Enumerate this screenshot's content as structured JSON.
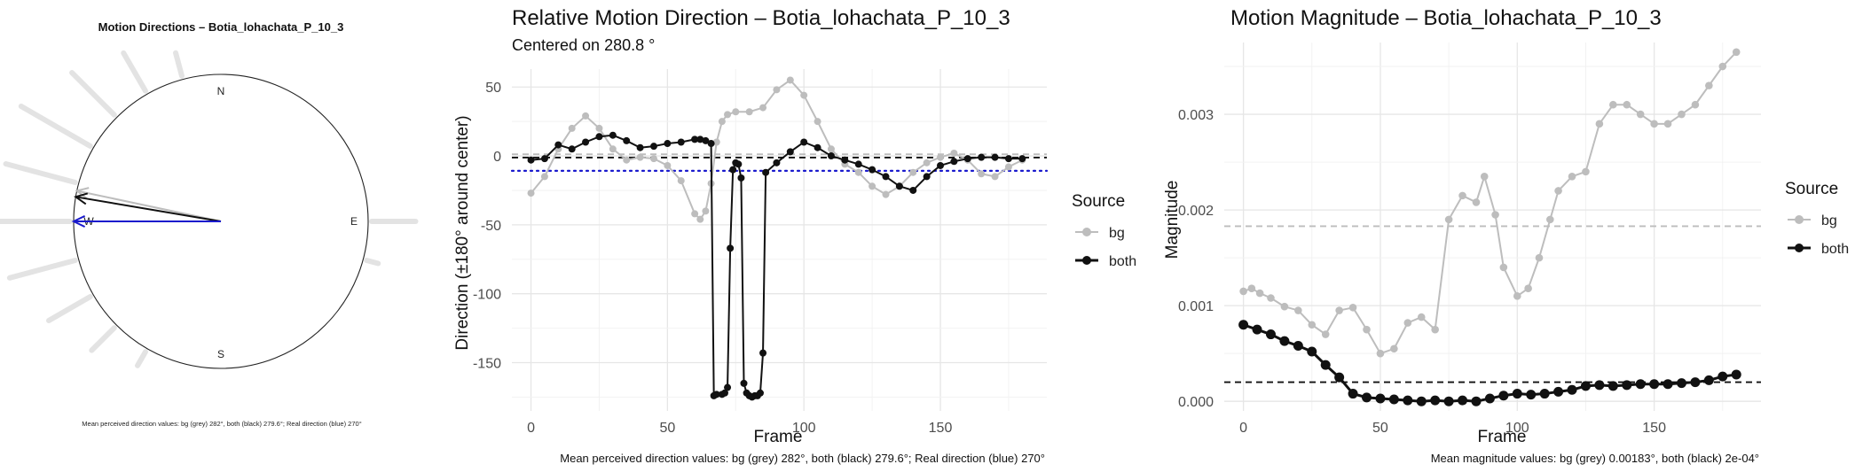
{
  "chart_data": [
    {
      "type": "polar",
      "title": "Motion Directions – Botia_lohachata_P_10_3",
      "compass": {
        "n": "N",
        "e": "E",
        "s": "S",
        "w": "W"
      },
      "caption": "Mean perceived direction values: bg (grey) 282°, both (black) 279.6°; Real direction (blue) 270°",
      "rose_angles_deg": [
        0,
        15,
        30,
        45,
        60,
        75,
        90,
        105,
        120,
        135,
        150,
        165,
        180,
        195,
        210,
        225,
        240,
        255,
        270,
        285,
        300,
        315,
        330,
        345
      ],
      "rose_lengths": [
        0,
        0,
        0,
        0,
        0,
        0,
        0.55,
        0.15,
        0,
        0,
        0,
        0,
        0,
        0,
        0.2,
        0.4,
        0.6,
        0.85,
        1.0,
        0.9,
        1.0,
        0.75,
        0.55,
        0.3
      ],
      "arrows": [
        {
          "color": "#bdbdbd",
          "angle_deg": 282,
          "length": 1.0
        },
        {
          "color": "#111111",
          "angle_deg": 279.6,
          "length": 1.0
        },
        {
          "color": "#1a1acd",
          "angle_deg": 270,
          "length": 1.0
        }
      ],
      "colors": {
        "bg": "#bdbdbd",
        "both": "#111111",
        "real": "#1a1acd"
      }
    },
    {
      "type": "line",
      "title": "Relative Motion Direction – Botia_lohachata_P_10_3",
      "subtitle": "Centered on  280.8 °",
      "xlabel": "Frame",
      "ylabel": "Direction (±180° around center)",
      "xlim": [
        -7,
        189
      ],
      "ylim": [
        -185,
        63
      ],
      "xticks": [
        0,
        50,
        100,
        150
      ],
      "yticks": [
        50,
        0,
        -50,
        -100,
        -150
      ],
      "legend_title": "Source",
      "legend_position": "right",
      "caption": "Mean perceived direction values: bg (grey) 282°, both (black) 279.6°; Real direction (blue) 270°",
      "hlines": [
        {
          "y": 1.2,
          "style": "dashed",
          "color": "#bdbdbd"
        },
        {
          "y": -1.2,
          "style": "dashed",
          "color": "#111111"
        },
        {
          "y": -10.8,
          "style": "dotted",
          "color": "#1a1acd"
        }
      ],
      "series": [
        {
          "name": "bg",
          "color": "#bdbdbd",
          "x": [
            0,
            5,
            10,
            15,
            20,
            25,
            30,
            35,
            40,
            45,
            50,
            55,
            60,
            62,
            64,
            66,
            68,
            70,
            72,
            75,
            80,
            85,
            90,
            95,
            100,
            105,
            110,
            115,
            120,
            125,
            130,
            135,
            140,
            145,
            150,
            155,
            160,
            165,
            170,
            175,
            180
          ],
          "y": [
            -27,
            -15,
            5,
            20,
            29,
            20,
            5,
            -3,
            -1,
            -2,
            -7,
            -18,
            -42,
            -46,
            -40,
            -20,
            10,
            25,
            30,
            32,
            32,
            35,
            48,
            55,
            44,
            25,
            5,
            -6,
            -12,
            -22,
            -28,
            -22,
            -12,
            -5,
            -1,
            2,
            -3,
            -13,
            -15,
            -8,
            -3
          ]
        },
        {
          "name": "both",
          "color": "#111111",
          "x": [
            0,
            5,
            10,
            15,
            20,
            25,
            30,
            35,
            40,
            45,
            50,
            55,
            60,
            62,
            64,
            66,
            67,
            68,
            70,
            71,
            72,
            73,
            74,
            75,
            76,
            77,
            78,
            79,
            80,
            81,
            82,
            83,
            84,
            85,
            86,
            90,
            95,
            100,
            105,
            110,
            115,
            120,
            125,
            130,
            135,
            140,
            145,
            150,
            155,
            160,
            165,
            170,
            175,
            180
          ],
          "y": [
            -3,
            -2,
            8,
            5,
            10,
            14,
            15,
            11,
            6,
            7,
            9,
            10,
            12,
            12,
            11,
            9,
            -174,
            -173,
            -173,
            -172,
            -168,
            -67,
            -10,
            -5,
            -6,
            -16,
            -165,
            -172,
            -174,
            -175,
            -174,
            -174,
            -172,
            -143,
            -12,
            -5,
            3,
            10,
            6,
            0,
            -3,
            -6,
            -10,
            -15,
            -22,
            -25,
            -15,
            -7,
            -4,
            -2,
            -1,
            -1,
            -2,
            -2
          ]
        }
      ]
    },
    {
      "type": "line",
      "title": "Motion Magnitude – Botia_lohachata_P_10_3",
      "xlabel": "Frame",
      "ylabel": "Magnitude",
      "xlim": [
        -7,
        189
      ],
      "ylim": [
        -0.0001,
        0.00375
      ],
      "xticks": [
        0,
        50,
        100,
        150
      ],
      "yticks": [
        0.003,
        0.002,
        0.001,
        0.0
      ],
      "ytick_labels": [
        "0.003",
        "0.002",
        "0.001",
        "0.000"
      ],
      "legend_title": "Source",
      "legend_position": "right",
      "caption": "Mean magnitude values: bg (grey) 0.00183°, both (black) 2e-04°",
      "hlines": [
        {
          "y": 0.00183,
          "style": "dashed",
          "color": "#bdbdbd"
        },
        {
          "y": 0.0002,
          "style": "dashed",
          "color": "#111111"
        }
      ],
      "series": [
        {
          "name": "bg",
          "color": "#bdbdbd",
          "x": [
            0,
            3,
            6,
            10,
            15,
            20,
            25,
            30,
            35,
            40,
            45,
            50,
            55,
            60,
            65,
            70,
            75,
            80,
            85,
            88,
            92,
            95,
            100,
            104,
            108,
            112,
            115,
            120,
            125,
            130,
            135,
            140,
            145,
            150,
            155,
            160,
            165,
            170,
            175,
            180
          ],
          "y": [
            0.00115,
            0.00118,
            0.00113,
            0.00108,
            0.00099,
            0.00095,
            0.0008,
            0.0007,
            0.00095,
            0.00098,
            0.00075,
            0.0005,
            0.00055,
            0.00082,
            0.00088,
            0.00075,
            0.0019,
            0.00215,
            0.00208,
            0.00235,
            0.00195,
            0.0014,
            0.0011,
            0.00118,
            0.0015,
            0.0019,
            0.0022,
            0.00235,
            0.0024,
            0.0029,
            0.0031,
            0.0031,
            0.003,
            0.0029,
            0.0029,
            0.003,
            0.0031,
            0.0033,
            0.0035,
            0.00365
          ]
        },
        {
          "name": "both",
          "color": "#111111",
          "x": [
            0,
            5,
            10,
            15,
            20,
            25,
            30,
            35,
            40,
            45,
            50,
            55,
            60,
            65,
            70,
            75,
            80,
            85,
            90,
            95,
            100,
            105,
            110,
            115,
            120,
            125,
            130,
            135,
            140,
            145,
            150,
            155,
            160,
            165,
            170,
            175,
            180
          ],
          "y": [
            0.0008,
            0.00075,
            0.0007,
            0.00063,
            0.00058,
            0.00052,
            0.00038,
            0.00025,
            8e-05,
            4e-05,
            3e-05,
            2e-05,
            1e-05,
            0.0,
            1e-05,
            0.0,
            1e-05,
            0.0,
            3e-05,
            6e-05,
            8e-05,
            7e-05,
            8e-05,
            0.0001,
            0.00012,
            0.00016,
            0.00017,
            0.00016,
            0.00017,
            0.00018,
            0.00018,
            0.00018,
            0.00019,
            0.0002,
            0.00022,
            0.00026,
            0.00028
          ]
        }
      ]
    }
  ]
}
